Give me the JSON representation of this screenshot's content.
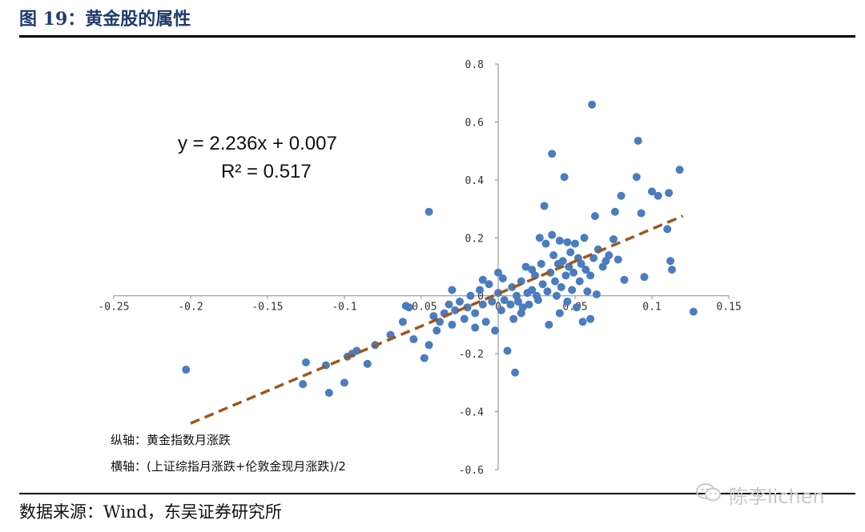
{
  "figure": {
    "title": "图 19：黄金股的属性",
    "source": "数据来源：Wind，东吴证券研究所",
    "watermark": "陈李lichen"
  },
  "chart_data": {
    "type": "scatter",
    "title": "",
    "xlim": [
      -0.25,
      0.15
    ],
    "ylim": [
      -0.6,
      0.8
    ],
    "x_ticks": [
      -0.25,
      -0.2,
      -0.15,
      -0.1,
      -0.05,
      0,
      0.05,
      0.1,
      0.15
    ],
    "x_tick_labels": [
      "-0.25",
      "-0.2",
      "-0.15",
      "-0.1",
      "-0.05",
      "0",
      "0.05",
      "0.1",
      "0.15"
    ],
    "y_ticks": [
      0.8,
      0.6,
      0.4,
      0.2,
      0,
      -0.2,
      -0.4,
      -0.6
    ],
    "y_tick_labels": [
      "0.8",
      "0.6",
      "0.4",
      "0.2",
      "0",
      "-0.2",
      "-0.4",
      "-0.6"
    ],
    "equation": "y = 2.236x + 0.007",
    "r_squared": "R² = 0.517",
    "y_axis_note": "纵轴：黄金指数月涨跌",
    "x_axis_note": "横轴：(上证综指月涨跌+伦敦金现月涨跌)/2",
    "trendline": {
      "slope": 2.236,
      "intercept": 0.007,
      "x_range": [
        -0.2,
        0.12
      ],
      "color": "#a0561b"
    },
    "point_color": "#4a7cbf",
    "points": [
      [
        -0.203,
        -0.255
      ],
      [
        -0.127,
        -0.305
      ],
      [
        -0.125,
        -0.23
      ],
      [
        -0.112,
        -0.24
      ],
      [
        -0.11,
        -0.335
      ],
      [
        -0.1,
        -0.3
      ],
      [
        -0.098,
        -0.21
      ],
      [
        -0.095,
        -0.2
      ],
      [
        -0.092,
        -0.19
      ],
      [
        -0.085,
        -0.235
      ],
      [
        -0.08,
        -0.17
      ],
      [
        -0.07,
        -0.135
      ],
      [
        -0.062,
        -0.09
      ],
      [
        -0.058,
        -0.04
      ],
      [
        -0.055,
        -0.15
      ],
      [
        -0.048,
        -0.215
      ],
      [
        -0.045,
        -0.17
      ],
      [
        -0.045,
        0.29
      ],
      [
        -0.042,
        -0.07
      ],
      [
        -0.04,
        -0.12
      ],
      [
        -0.038,
        -0.09
      ],
      [
        -0.035,
        -0.06
      ],
      [
        -0.032,
        -0.03
      ],
      [
        -0.03,
        -0.1
      ],
      [
        -0.028,
        -0.05
      ],
      [
        -0.025,
        -0.02
      ],
      [
        -0.022,
        -0.08
      ],
      [
        -0.02,
        -0.04
      ],
      [
        -0.018,
        0.0
      ],
      [
        -0.015,
        -0.11
      ],
      [
        -0.015,
        -0.06
      ],
      [
        -0.012,
        0.02
      ],
      [
        -0.01,
        -0.03
      ],
      [
        -0.008,
        -0.09
      ],
      [
        -0.006,
        0.04
      ],
      [
        -0.004,
        -0.02
      ],
      [
        -0.002,
        -0.12
      ],
      [
        0.0,
        0.01
      ],
      [
        0.002,
        -0.05
      ],
      [
        0.003,
        0.06
      ],
      [
        0.004,
        -0.015
      ],
      [
        0.006,
        -0.19
      ],
      [
        0.008,
        -0.03
      ],
      [
        0.009,
        0.03
      ],
      [
        0.01,
        -0.08
      ],
      [
        0.012,
        0.0
      ],
      [
        0.013,
        -0.02
      ],
      [
        0.015,
        0.05
      ],
      [
        0.016,
        -0.04
      ],
      [
        0.018,
        0.1
      ],
      [
        0.019,
        0.01
      ],
      [
        0.02,
        -0.03
      ],
      [
        0.011,
        -0.265
      ],
      [
        0.022,
        0.02
      ],
      [
        0.024,
        0.07
      ],
      [
        0.025,
        0.0
      ],
      [
        0.026,
        -0.015
      ],
      [
        0.027,
        0.2
      ],
      [
        0.028,
        0.11
      ],
      [
        0.029,
        0.04
      ],
      [
        0.03,
        0.31
      ],
      [
        0.031,
        0.18
      ],
      [
        0.032,
        0.015
      ],
      [
        0.033,
        -0.1
      ],
      [
        0.034,
        0.08
      ],
      [
        0.035,
        0.49
      ],
      [
        0.035,
        0.21
      ],
      [
        0.036,
        0.14
      ],
      [
        0.037,
        0.05
      ],
      [
        0.038,
        0.0
      ],
      [
        0.039,
        0.11
      ],
      [
        0.04,
        -0.06
      ],
      [
        0.04,
        0.19
      ],
      [
        0.041,
        0.03
      ],
      [
        0.042,
        0.12
      ],
      [
        0.043,
        0.41
      ],
      [
        0.044,
        0.07
      ],
      [
        0.045,
        -0.02
      ],
      [
        0.046,
        0.1
      ],
      [
        0.047,
        0.15
      ],
      [
        0.048,
        0.02
      ],
      [
        0.049,
        0.08
      ],
      [
        0.05,
        0.18
      ],
      [
        0.051,
        -0.04
      ],
      [
        0.052,
        0.13
      ],
      [
        0.053,
        0.05
      ],
      [
        0.054,
        0.11
      ],
      [
        0.055,
        -0.09
      ],
      [
        0.056,
        0.2
      ],
      [
        0.057,
        0.09
      ],
      [
        0.058,
        0.015
      ],
      [
        0.06,
        -0.08
      ],
      [
        0.061,
        0.66
      ],
      [
        0.062,
        0.13
      ],
      [
        0.063,
        0.275
      ],
      [
        0.064,
        0.005
      ],
      [
        0.065,
        0.16
      ],
      [
        0.068,
        0.1
      ],
      [
        0.07,
        0.12
      ],
      [
        0.072,
        0.14
      ],
      [
        0.075,
        0.195
      ],
      [
        0.076,
        0.29
      ],
      [
        0.078,
        0.125
      ],
      [
        0.08,
        0.345
      ],
      [
        0.082,
        0.055
      ],
      [
        0.09,
        0.41
      ],
      [
        0.091,
        0.535
      ],
      [
        0.093,
        0.285
      ],
      [
        0.095,
        0.065
      ],
      [
        0.1,
        0.36
      ],
      [
        0.104,
        0.345
      ],
      [
        0.11,
        0.23
      ],
      [
        0.111,
        0.355
      ],
      [
        0.112,
        0.12
      ],
      [
        0.113,
        0.09
      ],
      [
        0.118,
        0.435
      ],
      [
        0.127,
        -0.055
      ],
      [
        -0.06,
        -0.035
      ],
      [
        -0.03,
        0.02
      ],
      [
        -0.01,
        0.055
      ],
      [
        0.0,
        0.08
      ],
      [
        0.015,
        -0.06
      ],
      [
        0.022,
        0.09
      ],
      [
        0.045,
        0.185
      ],
      [
        0.06,
        0.07
      ]
    ]
  }
}
